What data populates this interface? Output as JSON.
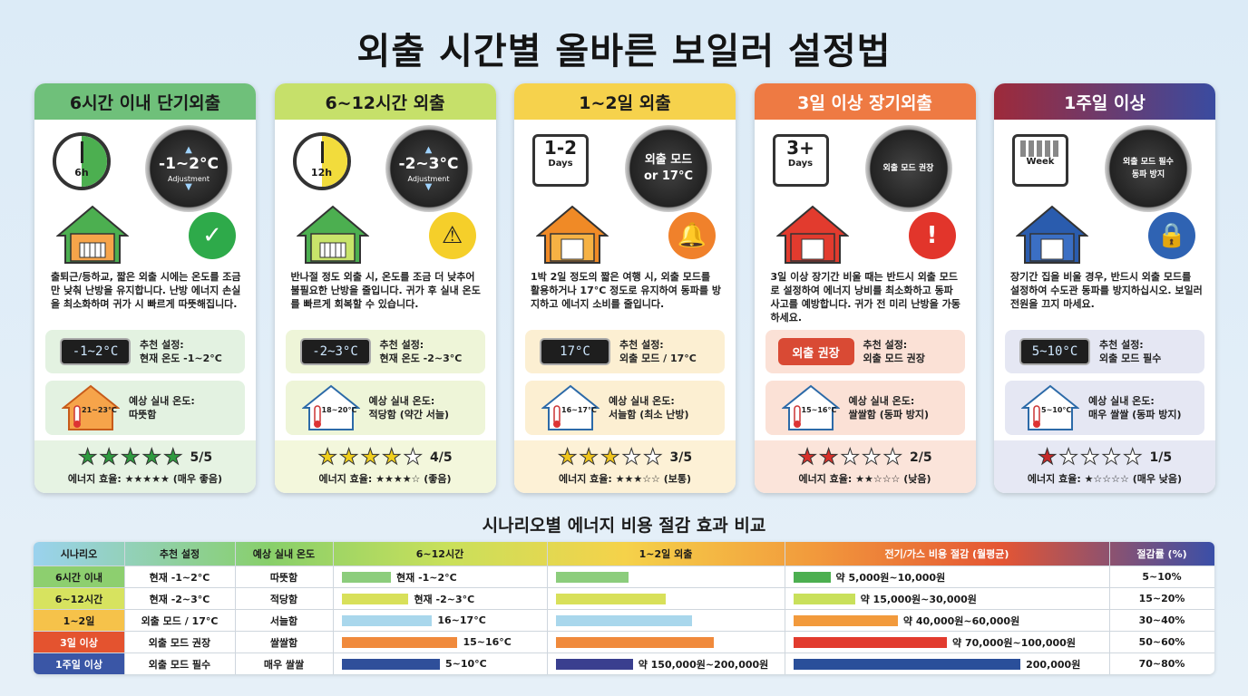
{
  "title": "외출 시간별 올바른 보일러 설정법",
  "cards": [
    {
      "header": "6시간 이내 단기외출",
      "header_color": "#6fc07a",
      "clock_label": "6h",
      "clock_fill_color": "#4caf50",
      "dial_value": "-1~2°C",
      "dial_sub": "Adjustment",
      "status_icon": "check-icon",
      "status_color": "#2eaa4a",
      "description": "출퇴근/등하교, 짧은 외출 시에는 온도를 조금만 낮춰 난방을 유지합니다. 난방 에너지 손실을 최소화하며 귀가 시 빠르게 따뜻해집니다.",
      "rec_display": "-1~2°C",
      "rec_label": "추천 설정:",
      "rec_value": "현재 온도 -1~2°C",
      "exp_house_text": "21~23°C",
      "exp_label": "예상 실내 온도:",
      "exp_value": "따뜻함",
      "stars_filled": 5,
      "score": "5/5",
      "efficiency": "에너지 효율: ★★★★★ (매우 좋음)",
      "box_color": "#e3f2e1",
      "rating_color": "#e6f3e3",
      "star_color": "#2e9a3f"
    },
    {
      "header": "6~12시간 외출",
      "header_color": "#c6e06a",
      "clock_label": "12h",
      "clock_fill_color": "#f2dc3c",
      "dial_value": "-2~3°C",
      "dial_sub": "Adjustment",
      "status_icon": "warning-icon",
      "status_color": "#f5cf2a",
      "description": "반나절 정도 외출 시, 온도를 조금 더 낮추어 불필요한 난방을 줄입니다. 귀가 후 실내 온도를 빠르게 회복할 수 있습니다.",
      "rec_display": "-2~3°C",
      "rec_label": "추천 설정:",
      "rec_value": "현재 온도 -2~3°C",
      "exp_house_text": "18~20°C",
      "exp_label": "예상 실내 온도:",
      "exp_value": "적당함 (약간 서늘)",
      "stars_filled": 4,
      "score": "4/5",
      "efficiency": "에너지 효율: ★★★★☆ (좋음)",
      "box_color": "#eef5d8",
      "rating_color": "#f3f7dc",
      "star_color": "#f0cf1c"
    },
    {
      "header": "1~2일 외출",
      "header_color": "#f6d24c",
      "cal_big": "1-2",
      "cal_small": "Days",
      "dial_value": "외출 모드 or 17°C",
      "status_icon": "bell-icon",
      "status_color": "#f0812b",
      "description": "1박 2일 정도의 짧은 여행 시, 외출 모드를 활용하거나 17°C 정도로 유지하여 동파를 방지하고 에너지 소비를 줄입니다.",
      "rec_display": "17°C",
      "rec_label": "추천 설정:",
      "rec_value": "외출 모드 / 17°C",
      "exp_house_text": "16~17°C",
      "exp_label": "예상 실내 온도:",
      "exp_value": "서늘함 (최소 난방)",
      "stars_filled": 3,
      "score": "3/5",
      "efficiency": "에너지 효율: ★★★☆☆ (보통)",
      "box_color": "#fcefd2",
      "rating_color": "#fdf1d6",
      "star_color": "#f0c51c"
    },
    {
      "header": "3일 이상 장기외출",
      "header_color": "#ee7a43",
      "cal_big": "3+",
      "cal_small": "Days",
      "dial_value": "외출 모드 권장",
      "status_icon": "alert-icon",
      "status_color": "#e2352b",
      "description": "3일 이상 장기간 비울 때는 반드시 외출 모드로 설정하여 에너지 낭비를 최소화하고 동파 사고를 예방합니다. 귀가 전 미리 난방을 가동하세요.",
      "rec_display": "외출 권장",
      "rec_label": "추천 설정:",
      "rec_value": "외출 모드 권장",
      "exp_house_text": "15~16°C",
      "exp_label": "예상 실내 온도:",
      "exp_value": "쌀쌀함 (동파 방지)",
      "stars_filled": 2,
      "score": "2/5",
      "efficiency": "에너지 효율: ★★☆☆☆ (낮음)",
      "box_color": "#fbe1d6",
      "rating_color": "#fbe4da",
      "star_color": "#d8302a"
    },
    {
      "header": "1주일 이상",
      "header_color": "#8e2a4f",
      "cal_small": "Week",
      "dial_value": "외출 모드 필수 동파 방지",
      "status_icon": "lock-icon",
      "status_color": "#2f63b3",
      "description": "장기간 집을 비울 경우, 반드시 외출 모드를 설정하여 수도관 동파를 방지하십시오. 보일러 전원을 끄지 마세요.",
      "rec_display": "5~10°C",
      "rec_label": "추천 설정:",
      "rec_value": "외출 모드 필수",
      "exp_house_text": "5~10°C",
      "exp_label": "예상 실내 온도:",
      "exp_value": "매우 쌀쌀 (동파 방지)",
      "stars_filled": 1,
      "score": "1/5",
      "efficiency": "에너지 효율: ★☆☆☆☆ (매우 낮음)",
      "box_color": "#e5e7f3",
      "rating_color": "#e6e8f4",
      "star_color": "#c62828"
    }
  ],
  "comparison": {
    "title": "시나리오별 에너지 비용 절감 효과 비교",
    "headers": [
      "시나리오",
      "추천 설정",
      "예상 실내 온도",
      "6~12시간",
      "1~2일 외출",
      "전기/가스 비용 절감 (월평균)",
      "절감률 (%)"
    ],
    "rows": [
      {
        "name": "6시간 이내",
        "name_color": "#8dcf6f",
        "setting": "현재 -1~2°C",
        "temp": "따뜻함",
        "bar_color": "#8ccd7c",
        "col1_label": "현재 -1~2°C",
        "col1_frac": 0.25,
        "col2_frac": 0.33,
        "col3_label": "약 5,000원~10,000원",
        "col3_frac": 0.12,
        "rate": "5~10%"
      },
      {
        "name": "6~12시간",
        "name_color": "#d7e35f",
        "setting": "현재 -2~3°C",
        "temp": "적당함",
        "bar_color": "#d8e05a",
        "col1_label": "현재 -2~3°C",
        "col1_frac": 0.34,
        "col2_frac": 0.5,
        "col3_label": "약 15,000원~30,000원",
        "col3_frac": 0.2,
        "rate": "15~20%"
      },
      {
        "name": "1~2일",
        "name_color": "#f6c24a",
        "setting": "외출 모드 / 17°C",
        "temp": "서늘함",
        "bar_color": "#a9d7ec",
        "col1_label": "16~17°C",
        "col1_frac": 0.46,
        "col2_frac": 0.62,
        "col3_label": "약 40,000원~60,000원",
        "col3_frac": 0.34,
        "rate": "30~40%"
      },
      {
        "name": "3일 이상",
        "name_color": "#e4532f",
        "setting": "외출 모드 권장",
        "temp": "쌀쌀함",
        "bar_color": "#f08a3c",
        "col1_label": "15~16°C",
        "col1_frac": 0.59,
        "col2_frac": 0.72,
        "col3_label": "약 70,000원~100,000원",
        "col3_frac": 0.5,
        "rate": "50~60%"
      },
      {
        "name": "1주일 이상",
        "name_color": "#3a56a6",
        "setting": "외출 모드 필수",
        "temp": "매우 쌀쌀",
        "bar_color": "#2f4f9a",
        "col1_label": "5~10°C",
        "col1_frac": 0.5,
        "col2_frac": 0.35,
        "col2_label": "약 150,000원~200,000원",
        "col3_label": "200,000원",
        "col3_frac": 0.74,
        "rate": "70~80%"
      }
    ]
  }
}
